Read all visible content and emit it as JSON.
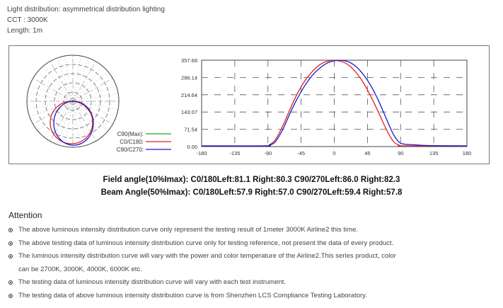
{
  "header": {
    "light_distribution": "Light distribution: asymmetrical distribution lighting",
    "cct": "CCT : 3000K",
    "length": "Length: 1m"
  },
  "colors": {
    "c90_max": "#22aa22",
    "c0_c180": "#e02020",
    "c90_c270": "#1a1ad0",
    "grid": "#555555"
  },
  "chart_data": [
    {
      "type": "polar",
      "series": [
        {
          "name": "C90(Max):",
          "color": "#22aa22",
          "values": []
        },
        {
          "name": "C0/C180:",
          "color": "#e02020"
        },
        {
          "name": "C90/C270:",
          "color": "#1a1ad0"
        }
      ],
      "legend": "right"
    },
    {
      "type": "line",
      "xlim": [
        -180,
        180
      ],
      "ylim": [
        0,
        357.68
      ],
      "xticks": [
        "-180",
        "-135",
        "-90",
        "-45",
        "0",
        "45",
        "90",
        "135",
        "180"
      ],
      "xtick_values": [
        -180,
        -135,
        -90,
        -45,
        0,
        45,
        90,
        135,
        180
      ],
      "yticks": [
        "0.00",
        "71.54",
        "143.07",
        "214.64",
        "286.14",
        "357.68"
      ],
      "ytick_values": [
        0,
        71.54,
        143.07,
        214.64,
        286.14,
        357.68
      ],
      "grid": true,
      "series": [
        {
          "name": "C0/C180:",
          "color": "#e02020",
          "x": [
            -180,
            -95,
            -88,
            -80,
            -70,
            -60,
            -50,
            -40,
            -30,
            -20,
            -10,
            0,
            10,
            20,
            30,
            40,
            50,
            60,
            70,
            80,
            88,
            95,
            180
          ],
          "y": [
            3,
            3,
            8,
            28,
            85,
            155,
            220,
            272,
            310,
            338,
            353,
            357,
            352,
            336,
            305,
            262,
            205,
            142,
            75,
            22,
            6,
            3,
            3
          ]
        },
        {
          "name": "C90/C270:",
          "color": "#1a1ad0",
          "x": [
            -180,
            -95,
            -88,
            -80,
            -70,
            -60,
            -50,
            -40,
            -30,
            -20,
            -10,
            0,
            10,
            20,
            30,
            40,
            50,
            60,
            70,
            80,
            88,
            95,
            105,
            115,
            130,
            180
          ],
          "y": [
            3,
            3,
            6,
            20,
            70,
            138,
            200,
            252,
            294,
            324,
            345,
            355,
            357,
            350,
            330,
            296,
            250,
            190,
            120,
            52,
            18,
            10,
            8,
            6,
            4,
            3
          ]
        }
      ]
    }
  ],
  "angles": {
    "field": "Field angle(10%Imax): C0/180Left:81.1 Right:80.3   C90/270Left:86.0 Right:82.3",
    "beam": "Beam Angle(50%Imax): C0/180Left:57.9 Right:57.0   C90/270Left:59.4 Right:57.8"
  },
  "attention": {
    "title": "Attention",
    "notes": [
      "The above luminous intensity distribution curve only represent the testing result of 1meter 3000K Airline2 this time.",
      "The above testing data of luminous intensity distribution curve only for testing reference, not present the data of every product.",
      "The luminous intensity distribution curve will vary with the power and color temperature of the Airline2.This series product, color",
      "can be 2700K, 3000K, 4000K, 6000K etc.",
      "The testing data of luminous intensity distribution curve will vary with each test instrument.",
      "The testing data of above luminous intensity distribution curve is from Shenzhen LCS Compliance Testing Laboratory."
    ]
  }
}
